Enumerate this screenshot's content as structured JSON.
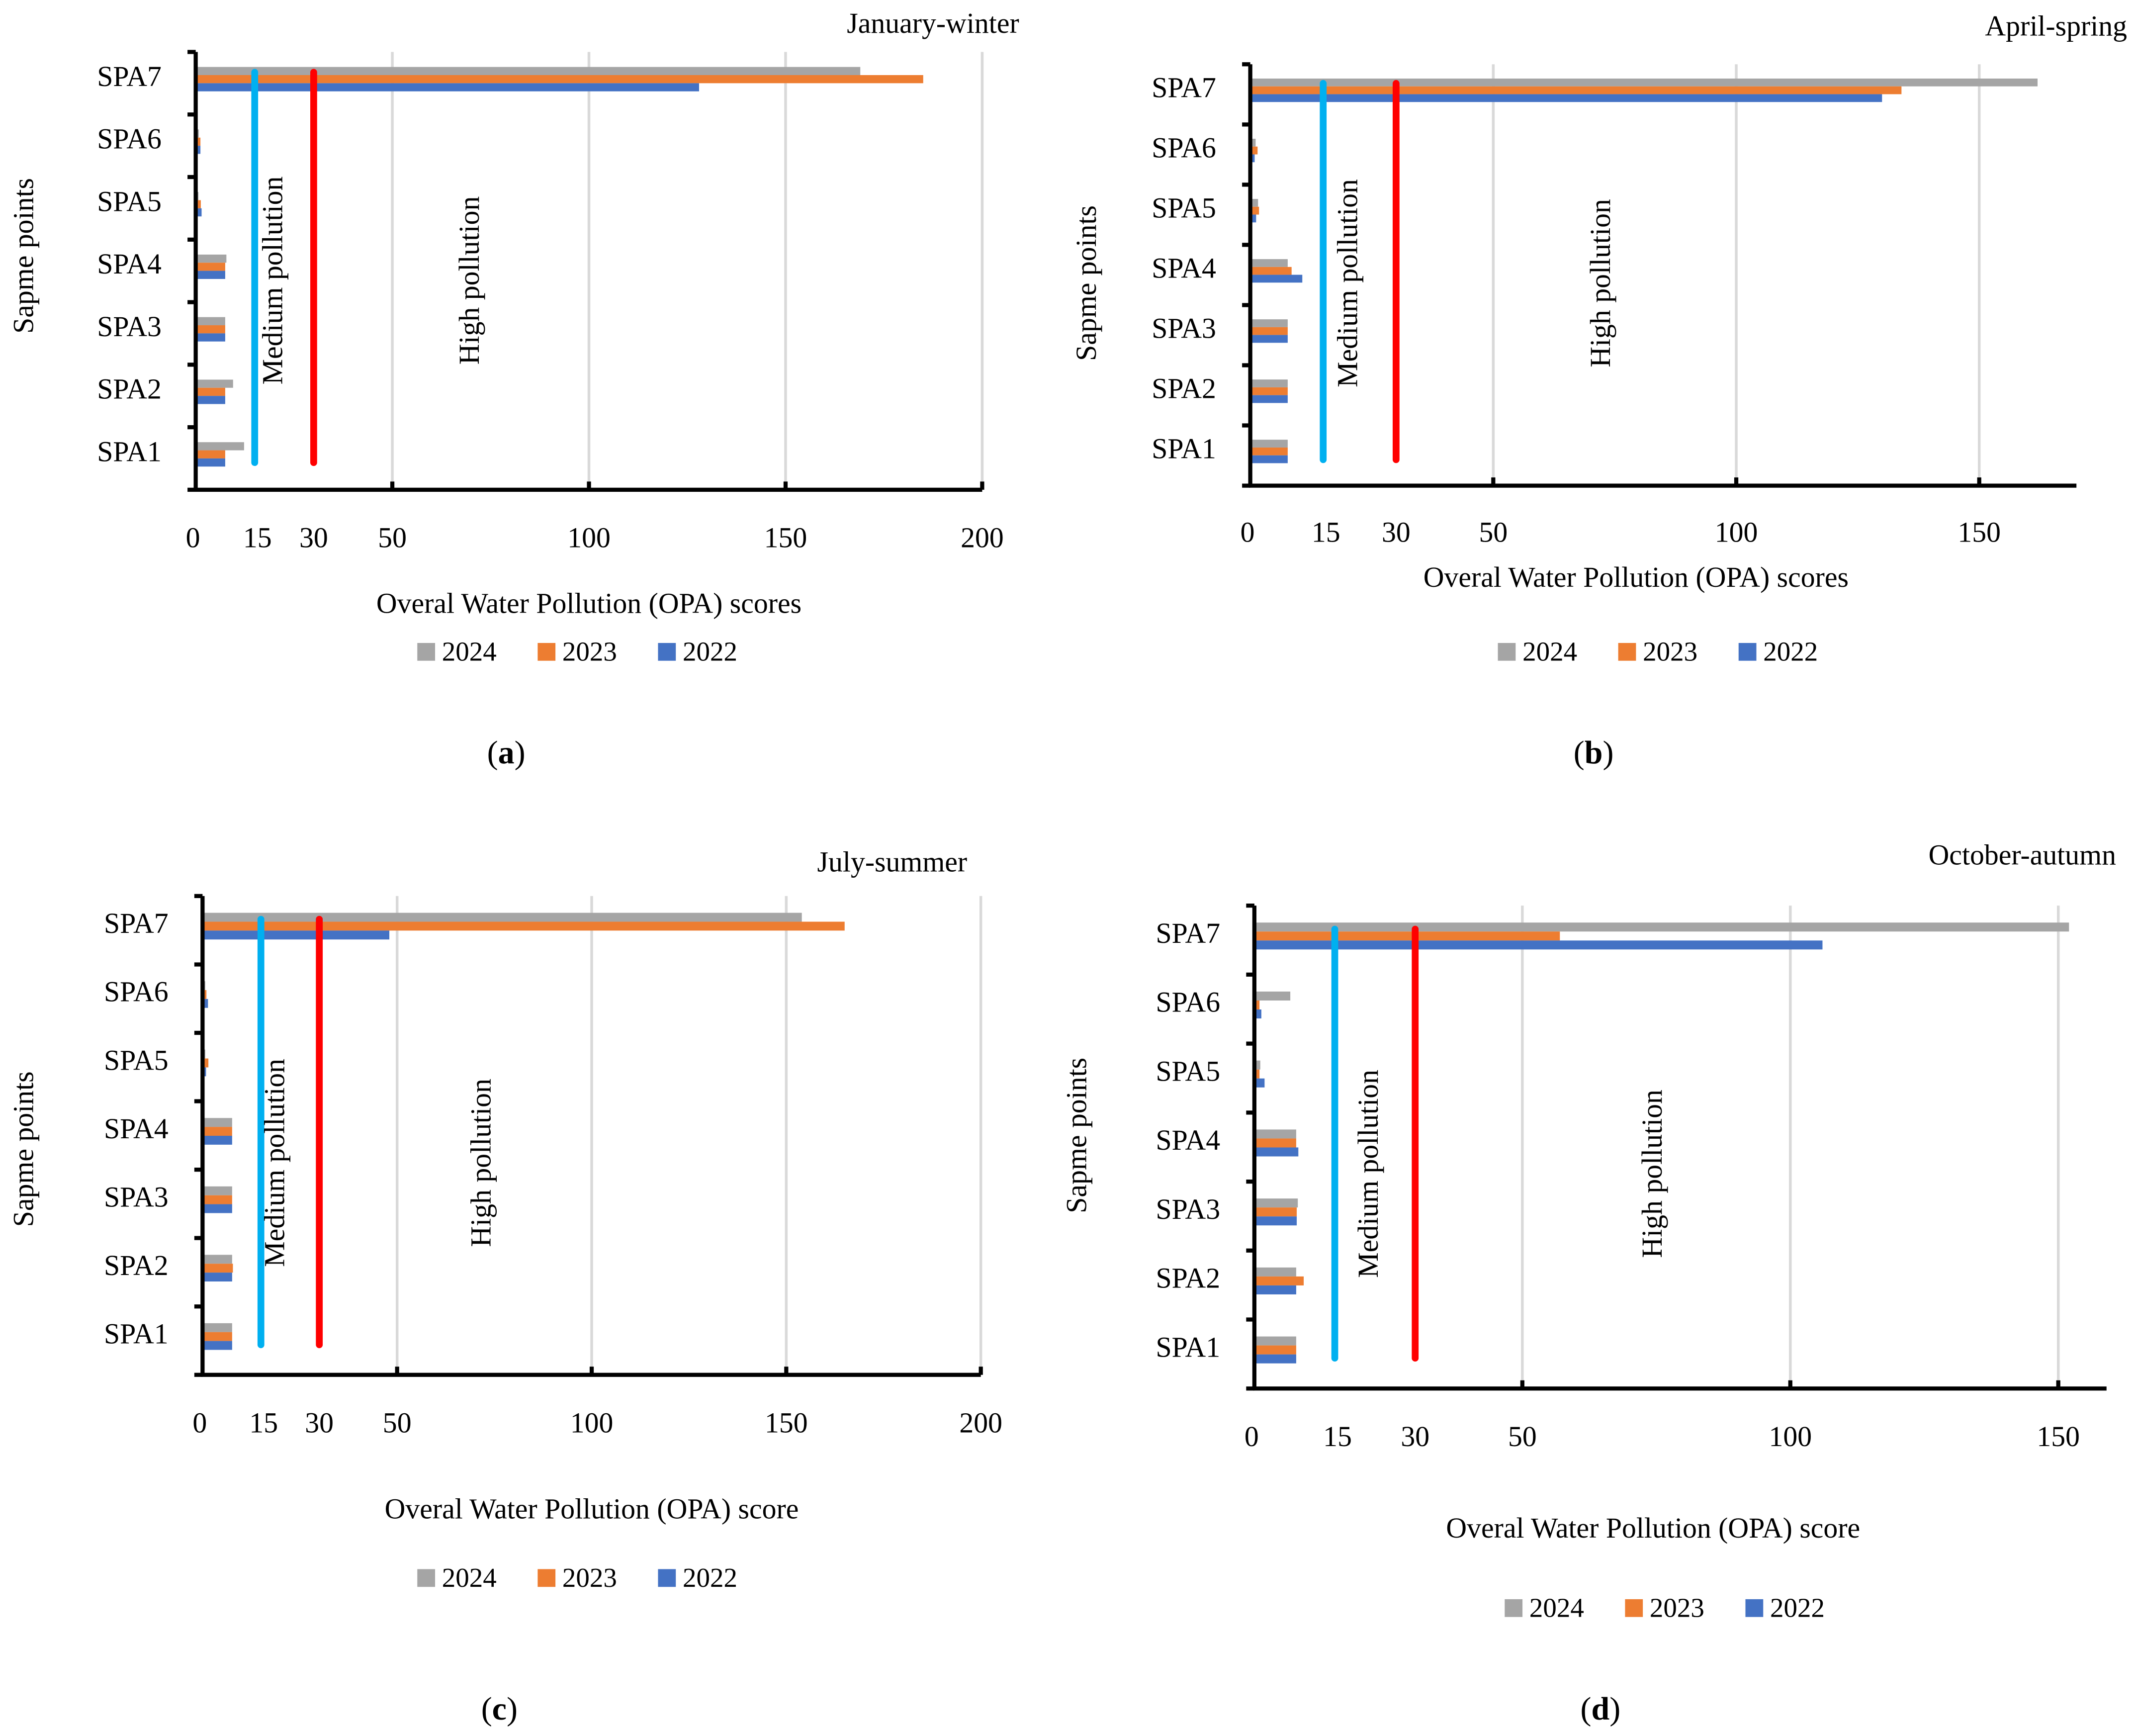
{
  "chart_data": [
    {
      "type": "bar",
      "orientation": "horizontal",
      "panel_label": "a",
      "title": "January-winter",
      "xlabel": "Overal Water Pollution (OPA) scores",
      "ylabel": "Sapme points",
      "categories": [
        "SPA1",
        "SPA2",
        "SPA3",
        "SPA4",
        "SPA5",
        "SPA6",
        "SPA7"
      ],
      "xlim": [
        0,
        200
      ],
      "xticks": [
        0,
        15,
        30,
        50,
        100,
        150,
        200
      ],
      "gridlines": [
        50,
        100,
        150,
        200
      ],
      "series": [
        {
          "name": "2024",
          "color": "#A5A5A5",
          "values": [
            12.3,
            9.5,
            7.5,
            7.8,
            0.7,
            0.8,
            169
          ]
        },
        {
          "name": "2023",
          "color": "#ED7D31",
          "values": [
            7.5,
            7.5,
            7.5,
            7.5,
            1.3,
            1.2,
            185
          ]
        },
        {
          "name": "2022",
          "color": "#4472C4",
          "values": [
            7.5,
            7.5,
            7.5,
            7.5,
            1.5,
            1.2,
            128
          ]
        }
      ],
      "thresholds": [
        {
          "value": 15,
          "color": "#00B0F0"
        },
        {
          "value": 30,
          "color": "#FF0000"
        }
      ],
      "annotations": [
        "Medium pollution",
        "High pollution"
      ],
      "legend_position": "bottom",
      "caption": "a"
    },
    {
      "type": "bar",
      "orientation": "horizontal",
      "panel_label": "b",
      "title": "April-spring",
      "xlabel": "Overal Water Pollution (OPA) scores",
      "ylabel": "Sapme points",
      "categories": [
        "SPA1",
        "SPA2",
        "SPA3",
        "SPA4",
        "SPA5",
        "SPA6",
        "SPA7"
      ],
      "xlim": [
        0,
        170
      ],
      "xticks": [
        0,
        15,
        30,
        50,
        100,
        150
      ],
      "gridlines": [
        50,
        100,
        150
      ],
      "series": [
        {
          "name": "2024",
          "color": "#A5A5A5",
          "values": [
            7.7,
            7.7,
            7.7,
            7.7,
            1.6,
            1.1,
            162
          ]
        },
        {
          "name": "2023",
          "color": "#ED7D31",
          "values": [
            7.7,
            7.7,
            7.7,
            8.5,
            1.8,
            1.5,
            134
          ]
        },
        {
          "name": "2022",
          "color": "#4472C4",
          "values": [
            7.7,
            7.7,
            7.7,
            10.7,
            1.2,
            0.9,
            130
          ]
        }
      ],
      "thresholds": [
        {
          "value": 15,
          "color": "#00B0F0"
        },
        {
          "value": 30,
          "color": "#FF0000"
        }
      ],
      "annotations": [
        "Medium pollution",
        "High pollution"
      ],
      "legend_position": "bottom",
      "caption": "b"
    },
    {
      "type": "bar",
      "orientation": "horizontal",
      "panel_label": "c",
      "title": "July-summer",
      "xlabel": "Overal Water Pollution (OPA) score",
      "ylabel": "Sapme points",
      "categories": [
        "SPA1",
        "SPA2",
        "SPA3",
        "SPA4",
        "SPA5",
        "SPA6",
        "SPA7"
      ],
      "xlim": [
        0,
        200
      ],
      "xticks": [
        0,
        15,
        30,
        50,
        100,
        150,
        200
      ],
      "gridlines": [
        50,
        100,
        150,
        200
      ],
      "series": [
        {
          "name": "2024",
          "color": "#A5A5A5",
          "values": [
            7.6,
            7.6,
            7.6,
            7.6,
            0.7,
            0.7,
            154
          ]
        },
        {
          "name": "2023",
          "color": "#ED7D31",
          "values": [
            7.6,
            7.8,
            7.6,
            7.6,
            1.5,
            1.0,
            165
          ]
        },
        {
          "name": "2022",
          "color": "#4472C4",
          "values": [
            7.6,
            7.6,
            7.6,
            7.6,
            0.9,
            1.4,
            48
          ]
        }
      ],
      "thresholds": [
        {
          "value": 15,
          "color": "#00B0F0"
        },
        {
          "value": 30,
          "color": "#FF0000"
        }
      ],
      "annotations": [
        "Medium pollution",
        "High  pollution"
      ],
      "legend_position": "bottom",
      "caption": "c"
    },
    {
      "type": "bar",
      "orientation": "horizontal",
      "panel_label": "d",
      "title": "October-autumn",
      "xlabel": "Overal Water Pollution (OPA) score",
      "ylabel": "Sapme points",
      "categories": [
        "SPA1",
        "SPA2",
        "SPA3",
        "SPA4",
        "SPA5",
        "SPA6",
        "SPA7"
      ],
      "xlim": [
        0,
        159
      ],
      "xticks": [
        0,
        15,
        30,
        50,
        100,
        150
      ],
      "gridlines": [
        50,
        100,
        150
      ],
      "series": [
        {
          "name": "2024",
          "color": "#A5A5A5",
          "values": [
            7.8,
            7.8,
            8.1,
            7.8,
            1.1,
            6.7,
            152
          ]
        },
        {
          "name": "2023",
          "color": "#ED7D31",
          "values": [
            7.8,
            9.2,
            7.9,
            7.8,
            0.95,
            0.95,
            57
          ]
        },
        {
          "name": "2022",
          "color": "#4472C4",
          "values": [
            7.8,
            7.8,
            7.9,
            8.2,
            1.9,
            1.3,
            106
          ]
        }
      ],
      "thresholds": [
        {
          "value": 15,
          "color": "#00B0F0"
        },
        {
          "value": 30,
          "color": "#FF0000"
        }
      ],
      "annotations": [
        "Medium pollution",
        "High  pollution"
      ],
      "legend_position": "bottom",
      "caption": "d"
    }
  ]
}
